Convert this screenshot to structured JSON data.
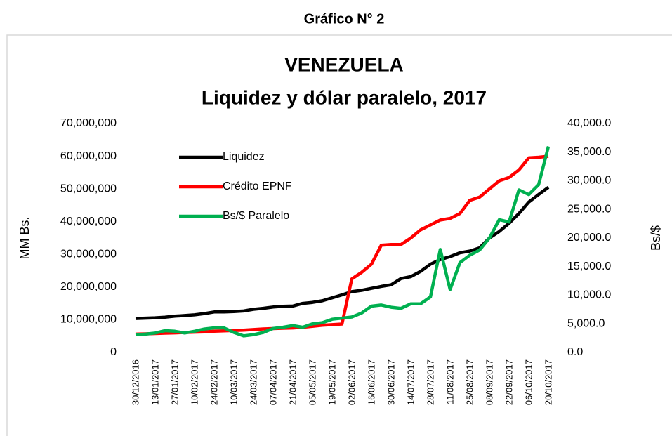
{
  "header": "Gráfico N° 2",
  "chart_data": {
    "type": "line",
    "title": "VENEZUELA",
    "subtitle": "Liquidez y dólar paralelo, 2017",
    "y_label": "MM Bs.",
    "y2_label": "Bs/$",
    "categories": [
      "30/12/2016",
      null,
      "13/01/2017",
      null,
      "27/01/2017",
      null,
      "10/02/2017",
      null,
      "24/02/2017",
      null,
      "10/03/2017",
      null,
      "24/03/2017",
      null,
      "07/04/2017",
      null,
      "21/04/2017",
      null,
      "05/05/2017",
      null,
      "19/05/2017",
      null,
      "02/06/2017",
      null,
      "16/06/2017",
      null,
      "30/06/2017",
      null,
      "14/07/2017",
      null,
      "28/07/2017",
      null,
      "11/08/2017",
      null,
      "25/08/2017",
      null,
      "08/09/2017",
      null,
      "22/09/2017",
      null,
      "06/10/2017",
      null,
      "20/10/2017"
    ],
    "series": [
      {
        "name": "Liquidez",
        "color": "#000000",
        "values": [
          10400000,
          10500000,
          10600000,
          10800000,
          11100000,
          11300000,
          11500000,
          11900000,
          12400000,
          12400000,
          12500000,
          12700000,
          13200000,
          13500000,
          13900000,
          14100000,
          14200000,
          15000000,
          15300000,
          15800000,
          16700000,
          17600000,
          18600000,
          19000000,
          19600000,
          20200000,
          20700000,
          22600000,
          23200000,
          24800000,
          27000000,
          28400000,
          29300000,
          30500000,
          31000000,
          32000000,
          35000000,
          37000000,
          39500000,
          42500000,
          46000000,
          48300000,
          50500000
        ]
      },
      {
        "name": "Crédito EPNF",
        "color": "#ff0000",
        "values": [
          5600000,
          5700000,
          5800000,
          5900000,
          6000000,
          6100000,
          6200000,
          6300000,
          6500000,
          6600000,
          6700000,
          6800000,
          7000000,
          7200000,
          7300000,
          7400000,
          7500000,
          7700000,
          8000000,
          8300000,
          8500000,
          8700000,
          22500000,
          24500000,
          27000000,
          32800000,
          33000000,
          33000000,
          35000000,
          37500000,
          39000000,
          40500000,
          41000000,
          42500000,
          46500000,
          47500000,
          50000000,
          52500000,
          53500000,
          55800000,
          59500000,
          59700000,
          60000000
        ]
      },
      {
        "name": "Bs/$ Paralelo",
        "color": "#00b050",
        "axis": "y2",
        "values": [
          3100,
          3200,
          3400,
          3800,
          3700,
          3400,
          3700,
          4100,
          4300,
          4300,
          3500,
          2900,
          3100,
          3500,
          4200,
          4400,
          4700,
          4400,
          5000,
          5200,
          5800,
          6000,
          6200,
          6900,
          8100,
          8300,
          7900,
          7700,
          8500,
          8500,
          9700,
          18000,
          11000,
          15700,
          17000,
          17900,
          20000,
          23200,
          22800,
          28400,
          27600,
          29300,
          36000
        ]
      }
    ],
    "ylim": [
      0,
      70000000
    ],
    "yticks": [
      0,
      {
        "value": 10000000,
        "label": "10,000,000"
      },
      {
        "value": 20000000,
        "label": "20,000,000"
      },
      {
        "value": 30000000,
        "label": "30,000,000"
      },
      {
        "value": 40000000,
        "label": "40,000,000"
      },
      {
        "value": 50000000,
        "label": "50,000,000"
      },
      {
        "value": 60000000,
        "label": "60,000,000"
      },
      {
        "value": 70000000,
        "label": "70,000,000"
      }
    ],
    "y2lim": [
      0,
      40000
    ],
    "y2ticks": [
      {
        "value": 0,
        "label": "0.0"
      },
      {
        "value": 5000,
        "label": "5,000.0"
      },
      {
        "value": 10000,
        "label": "10,000.0"
      },
      {
        "value": 15000,
        "label": "15,000.0"
      },
      {
        "value": 20000,
        "label": "20,000.0"
      },
      {
        "value": 25000,
        "label": "25,000.0"
      },
      {
        "value": 30000,
        "label": "30,000.0"
      },
      {
        "value": 35000,
        "label": "35,000.0"
      },
      {
        "value": 40000,
        "label": "40,000.0"
      }
    ],
    "legend": "upper left"
  }
}
